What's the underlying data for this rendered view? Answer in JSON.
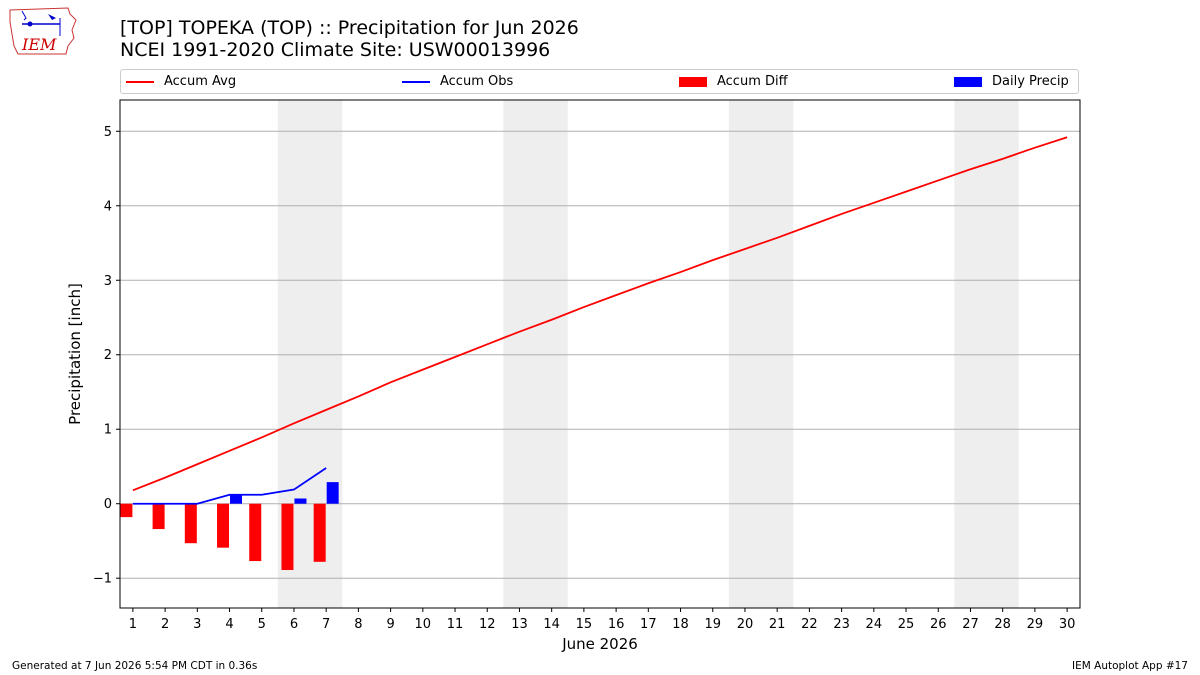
{
  "logo": {
    "text": "IEM"
  },
  "title": {
    "line1": "[TOP] TOPEKA (TOP) :: Precipitation for Jun 2026",
    "line2": "NCEI 1991-2020 Climate Site: USW00013996"
  },
  "legend": {
    "accum_avg": "Accum Avg",
    "accum_obs": "Accum Obs",
    "accum_diff": "Accum Diff",
    "daily_precip": "Daily Precip"
  },
  "footer": {
    "left": "Generated at 7 Jun 2026 5:54 PM CDT in 0.36s",
    "right": "IEM Autoplot App #17"
  },
  "colors": {
    "avg": "#ff0000",
    "obs": "#0000ff",
    "diff": "#ff0000",
    "daily": "#0000ff",
    "weekend_band": "#eeeeee",
    "grid": "#b0b0b0"
  },
  "chart_data": {
    "type": "line",
    "xlabel": "June 2026",
    "ylabel": "Precipitation [inch]",
    "xlim": [
      0.6,
      30.4
    ],
    "ylim": [
      -1.4,
      5.42
    ],
    "yticks": [
      -1,
      0,
      1,
      2,
      3,
      4,
      5
    ],
    "ytick_labels": [
      "−1",
      "0",
      "1",
      "2",
      "3",
      "4",
      "5"
    ],
    "x": [
      1,
      2,
      3,
      4,
      5,
      6,
      7,
      8,
      9,
      10,
      11,
      12,
      13,
      14,
      15,
      16,
      17,
      18,
      19,
      20,
      21,
      22,
      23,
      24,
      25,
      26,
      27,
      28,
      29,
      30
    ],
    "weekend_bands": [
      [
        5.5,
        7.5
      ],
      [
        12.5,
        14.5
      ],
      [
        19.5,
        21.5
      ],
      [
        26.5,
        28.5
      ]
    ],
    "grid": "horizontal",
    "legend_position": "top",
    "series": [
      {
        "name": "Accum Avg",
        "type": "line",
        "x": [
          1,
          2,
          3,
          4,
          5,
          6,
          7,
          8,
          9,
          10,
          11,
          12,
          13,
          14,
          15,
          16,
          17,
          18,
          19,
          20,
          21,
          22,
          23,
          24,
          25,
          26,
          27,
          28,
          29,
          30
        ],
        "values": [
          0.18,
          0.35,
          0.53,
          0.71,
          0.89,
          1.08,
          1.26,
          1.44,
          1.63,
          1.8,
          1.97,
          2.14,
          2.31,
          2.47,
          2.64,
          2.8,
          2.96,
          3.11,
          3.27,
          3.42,
          3.57,
          3.73,
          3.89,
          4.04,
          4.19,
          4.34,
          4.49,
          4.63,
          4.78,
          4.92
        ]
      },
      {
        "name": "Accum Obs",
        "type": "line",
        "x": [
          1,
          2,
          3,
          4,
          5,
          6,
          7
        ],
        "values": [
          0.0,
          0.0,
          0.0,
          0.12,
          0.12,
          0.19,
          0.48
        ]
      },
      {
        "name": "Accum Diff",
        "type": "bar",
        "x": [
          1,
          2,
          3,
          4,
          5,
          6,
          7
        ],
        "values": [
          -0.18,
          -0.34,
          -0.53,
          -0.59,
          -0.77,
          -0.89,
          -0.78
        ]
      },
      {
        "name": "Daily Precip",
        "type": "bar",
        "x": [
          1,
          2,
          3,
          4,
          5,
          6,
          7
        ],
        "values": [
          0.0,
          0.0,
          0.0,
          0.12,
          0.0,
          0.07,
          0.29
        ]
      }
    ]
  }
}
